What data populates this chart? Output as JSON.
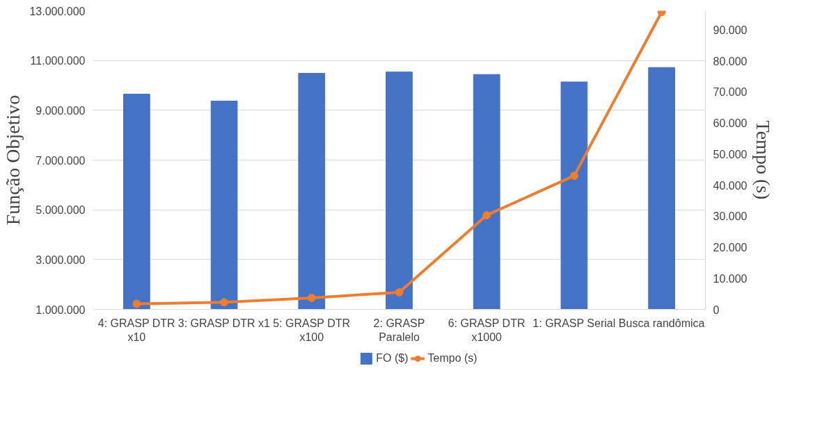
{
  "chart_data": {
    "type": "bar",
    "ylabel": "Função Objetivo",
    "y2label": "Tempo (s)",
    "categories": [
      "4: GRASP DTR x10",
      "3: GRASP DTR x1",
      "5: GRASP DTR x100",
      "2: GRASP Paralelo",
      "6: GRASP DTR x1000",
      "1: GRASP Serial",
      "Busca randômica"
    ],
    "series": [
      {
        "name": "FO ($)",
        "color": "#4472c4",
        "values": [
          9650000,
          9370000,
          10490000,
          10540000,
          10440000,
          10140000,
          10720000
        ]
      },
      {
        "name": "Tempo (s)",
        "type": "line",
        "axis": "y2",
        "color": "#ed7d31",
        "marker": "circle",
        "values": [
          1800,
          2300,
          3700,
          5500,
          30300,
          43000,
          95700
        ]
      }
    ],
    "ylim": [
      1000000,
      13000000
    ],
    "yticks": [
      {
        "value": 1000000,
        "label": "1.000.000"
      },
      {
        "value": 3000000,
        "label": "3.000.000"
      },
      {
        "value": 5000000,
        "label": "5.000.000"
      },
      {
        "value": 7000000,
        "label": "7.000.000"
      },
      {
        "value": 9000000,
        "label": "9.000.000"
      },
      {
        "value": 11000000,
        "label": "11.000.000"
      },
      {
        "value": 13000000,
        "label": "13.000.000"
      }
    ],
    "y2lim": [
      0,
      96100
    ],
    "y2ticks": [
      0,
      {
        "value": 10000,
        "label": "10.000"
      },
      {
        "value": 20000,
        "label": "20.000"
      },
      {
        "value": 30000,
        "label": "30.000"
      },
      {
        "value": 40000,
        "label": "40.000"
      },
      {
        "value": 50000,
        "label": "50.000"
      },
      {
        "value": 60000,
        "label": "60.000"
      },
      {
        "value": 70000,
        "label": "70.000"
      },
      {
        "value": 80000,
        "label": "80.000"
      },
      {
        "value": 90000,
        "label": "90.000"
      }
    ],
    "grid": "y",
    "legend": "bottom"
  }
}
